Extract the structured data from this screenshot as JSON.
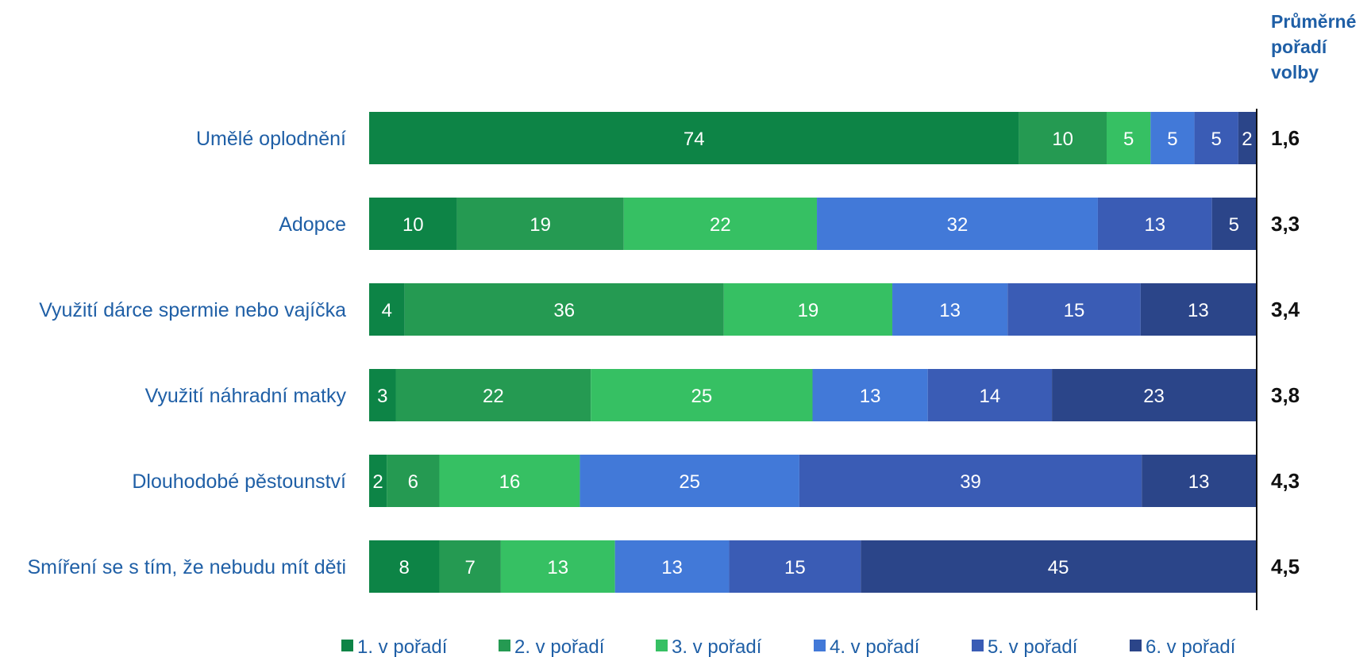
{
  "chart_data": {
    "type": "bar",
    "orientation": "horizontal",
    "stacked": true,
    "categories": [
      "Umělé oplodnění",
      "Adopce",
      "Využití dárce spermie nebo vajíčka",
      "Využití náhradní matky",
      "Dlouhodobé pěstounství",
      "Smíření se s tím, že nebudu mít děti"
    ],
    "series": [
      {
        "name": "1. v pořadí",
        "color": "#0d8446",
        "values": [
          74,
          10,
          4,
          3,
          2,
          8
        ]
      },
      {
        "name": "2. v pořadí",
        "color": "#259a52",
        "values": [
          10,
          19,
          36,
          22,
          6,
          7
        ]
      },
      {
        "name": "3. v pořadí",
        "color": "#36c063",
        "values": [
          5,
          22,
          19,
          25,
          16,
          13
        ]
      },
      {
        "name": "4. v pořadí",
        "color": "#4279d8",
        "values": [
          5,
          32,
          13,
          13,
          25,
          13
        ]
      },
      {
        "name": "5. v pořadí",
        "color": "#3a5cb5",
        "values": [
          5,
          13,
          15,
          14,
          39,
          15
        ]
      },
      {
        "name": "6. v pořadí",
        "color": "#2b4589",
        "values": [
          2,
          5,
          13,
          23,
          13,
          45
        ]
      }
    ],
    "average_title_lines": [
      "Průměrné",
      "pořadí",
      "volby"
    ],
    "averages": [
      "1,6",
      "3,3",
      "3,4",
      "3,8",
      "4,3",
      "4,5"
    ],
    "legend_position": "bottom",
    "grid": false
  }
}
